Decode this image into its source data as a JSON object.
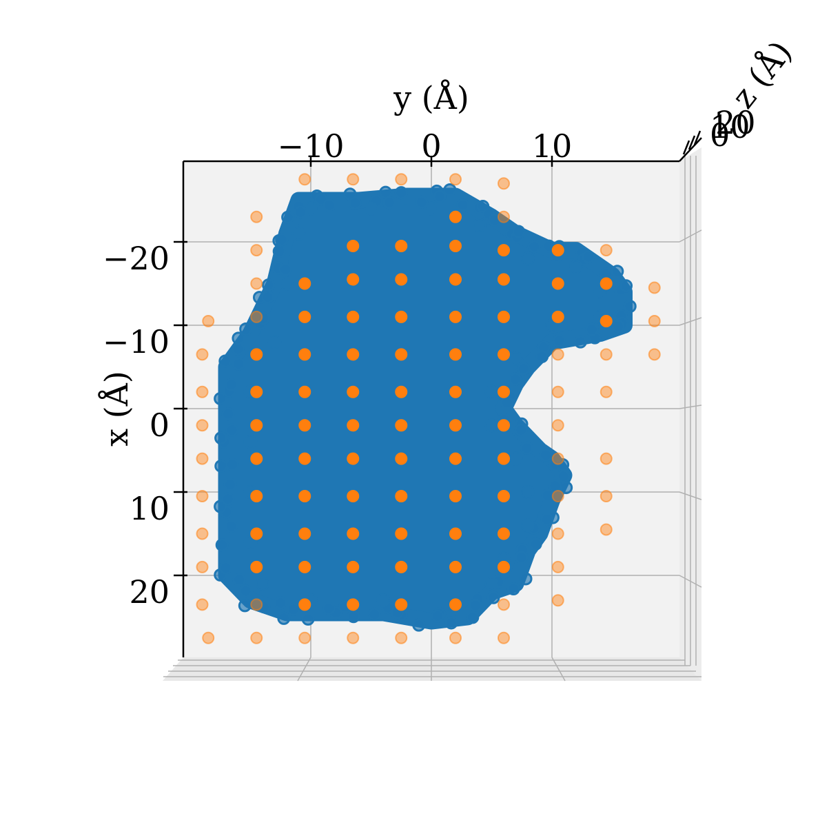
{
  "chart_data": {
    "type": "scatter",
    "projection": "3d viewed from top (y horizontal, x vertical, z into page)",
    "xlabel": "y (Å)",
    "ylabel": "x (Å)",
    "zlabel": "z (Å)",
    "x_axis": {
      "label": "y (Å)",
      "range": [
        -21,
        21
      ],
      "ticks": [
        "−10",
        "0",
        "10"
      ],
      "tick_values": [
        -10,
        0,
        10
      ]
    },
    "y_axis": {
      "label": "x (Å)",
      "range": [
        -30,
        30
      ],
      "ticks": [
        "−20",
        "−10",
        "0",
        "10",
        "20"
      ],
      "tick_values": [
        -20,
        -10,
        0,
        10,
        20
      ],
      "inverted": true
    },
    "z_axis": {
      "label": "z (Å)",
      "ticks": [
        "0",
        "10",
        "20"
      ],
      "tick_values": [
        0,
        10,
        20
      ]
    },
    "grid": true,
    "series": [
      {
        "name": "",
        "color": "#1f77b4",
        "description": "dense atom cloud",
        "outline": [
          [
            -11,
            -25
          ],
          [
            -6,
            -25
          ],
          [
            -2,
            -25.5
          ],
          [
            2,
            -25.5
          ],
          [
            5,
            -23
          ],
          [
            7,
            -21
          ],
          [
            10,
            -19
          ],
          [
            12,
            -19
          ],
          [
            15,
            -16
          ],
          [
            16,
            -14
          ],
          [
            16,
            -10
          ],
          [
            14,
            -9
          ],
          [
            10,
            -8
          ],
          [
            8,
            -5
          ],
          [
            7,
            -3
          ],
          [
            6,
            0
          ],
          [
            7,
            2
          ],
          [
            9,
            5
          ],
          [
            10,
            6
          ],
          [
            11,
            8
          ],
          [
            10,
            11
          ],
          [
            9,
            15
          ],
          [
            8,
            17
          ],
          [
            7,
            21
          ],
          [
            5,
            22
          ],
          [
            3,
            25
          ],
          [
            0,
            25.5
          ],
          [
            -4,
            24.5
          ],
          [
            -8,
            24.5
          ],
          [
            -12,
            24.5
          ],
          [
            -15,
            23
          ],
          [
            -17,
            20
          ],
          [
            -17,
            17
          ],
          [
            -17,
            13
          ],
          [
            -17,
            9
          ],
          [
            -17,
            6
          ],
          [
            -17,
            2
          ],
          [
            -17,
            -2
          ],
          [
            -17,
            -5
          ],
          [
            -15,
            -9
          ],
          [
            -13,
            -15
          ],
          [
            -12,
            -21
          ],
          [
            -11,
            -25
          ]
        ],
        "fill_regions": [
          [
            -10,
            -24
          ],
          [
            -5,
            -24
          ],
          [
            0,
            -24
          ],
          [
            4,
            -22
          ],
          [
            8,
            -18
          ],
          [
            12,
            -17
          ],
          [
            14,
            -14
          ],
          [
            14,
            -11
          ],
          [
            10,
            -10
          ],
          [
            7,
            -6
          ],
          [
            5,
            -2
          ],
          [
            5,
            2
          ],
          [
            7,
            6
          ],
          [
            8,
            10
          ],
          [
            8,
            14
          ],
          [
            6,
            18
          ],
          [
            5,
            21
          ],
          [
            2,
            24
          ],
          [
            -4,
            23
          ],
          [
            -10,
            23
          ],
          [
            -14,
            21
          ],
          [
            -15,
            16
          ],
          [
            -15,
            10
          ],
          [
            -15,
            4
          ],
          [
            -15,
            -2
          ],
          [
            -13,
            -8
          ],
          [
            -12,
            -15
          ],
          [
            -11,
            -21
          ]
        ]
      },
      {
        "name": "",
        "color": "#ff7f0e",
        "description": "grid points (opaque inside, faded outside)",
        "points": [
          [
            -10.5,
            -27.5
          ],
          [
            -6.5,
            -27.5
          ],
          [
            -2.5,
            -27.5
          ],
          [
            2,
            -27.5
          ],
          [
            6,
            -27
          ],
          [
            -14.5,
            -23
          ],
          [
            2,
            -23
          ],
          [
            6,
            -23
          ],
          [
            -14.5,
            -19
          ],
          [
            -6.5,
            -19.5
          ],
          [
            -2.5,
            -19.5
          ],
          [
            2,
            -19.5
          ],
          [
            6,
            -19
          ],
          [
            10.5,
            -19
          ],
          [
            14.5,
            -19
          ],
          [
            -14.5,
            -15
          ],
          [
            -10.5,
            -15
          ],
          [
            -6.5,
            -15.5
          ],
          [
            -2.5,
            -15.5
          ],
          [
            2,
            -15.5
          ],
          [
            6,
            -15.5
          ],
          [
            10.5,
            -15
          ],
          [
            14.5,
            -15
          ],
          [
            18.5,
            -14.5
          ],
          [
            -18.5,
            -10.5
          ],
          [
            -14.5,
            -11
          ],
          [
            -10.5,
            -11
          ],
          [
            -6.5,
            -11
          ],
          [
            -2.5,
            -11
          ],
          [
            2,
            -11
          ],
          [
            6,
            -11
          ],
          [
            10.5,
            -11
          ],
          [
            14.5,
            -10.5
          ],
          [
            18.5,
            -10.5
          ],
          [
            -19,
            -6.5
          ],
          [
            -14.5,
            -6.5
          ],
          [
            -10.5,
            -6.5
          ],
          [
            -6.5,
            -6.5
          ],
          [
            -2.5,
            -6.5
          ],
          [
            2,
            -6.5
          ],
          [
            6,
            -6.5
          ],
          [
            10.5,
            -6.5
          ],
          [
            14.5,
            -6.5
          ],
          [
            18.5,
            -6.5
          ],
          [
            -19,
            -2
          ],
          [
            -14.5,
            -2
          ],
          [
            -10.5,
            -2
          ],
          [
            -6.5,
            -2
          ],
          [
            -2.5,
            -2
          ],
          [
            2,
            -2
          ],
          [
            6,
            -2
          ],
          [
            10.5,
            -2
          ],
          [
            14.5,
            -2
          ],
          [
            -19,
            2
          ],
          [
            -14.5,
            2
          ],
          [
            -10.5,
            2
          ],
          [
            -6.5,
            2
          ],
          [
            -2.5,
            2
          ],
          [
            2,
            2
          ],
          [
            6,
            2
          ],
          [
            10.5,
            2
          ],
          [
            -19,
            6
          ],
          [
            -14.5,
            6
          ],
          [
            -10.5,
            6
          ],
          [
            -6.5,
            6
          ],
          [
            -2.5,
            6
          ],
          [
            2,
            6
          ],
          [
            6,
            6
          ],
          [
            10.5,
            6
          ],
          [
            14.5,
            6
          ],
          [
            -19,
            10.5
          ],
          [
            -14.5,
            10.5
          ],
          [
            -10.5,
            10.5
          ],
          [
            -6.5,
            10.5
          ],
          [
            -2.5,
            10.5
          ],
          [
            2,
            10.5
          ],
          [
            6,
            10.5
          ],
          [
            10.5,
            10.5
          ],
          [
            14.5,
            10.5
          ],
          [
            -19,
            15
          ],
          [
            -14.5,
            15
          ],
          [
            -10.5,
            15
          ],
          [
            -6.5,
            15
          ],
          [
            -2.5,
            15
          ],
          [
            2,
            15
          ],
          [
            6,
            15
          ],
          [
            10.5,
            15
          ],
          [
            14.5,
            14.5
          ],
          [
            -19,
            19
          ],
          [
            -14.5,
            19
          ],
          [
            -10.5,
            19
          ],
          [
            -6.5,
            19
          ],
          [
            -2.5,
            19
          ],
          [
            2,
            19
          ],
          [
            6,
            19
          ],
          [
            10.5,
            19
          ],
          [
            -19,
            23.5
          ],
          [
            -14.5,
            23.5
          ],
          [
            -10.5,
            23.5
          ],
          [
            -6.5,
            23.5
          ],
          [
            -2.5,
            23.5
          ],
          [
            2,
            23.5
          ],
          [
            6,
            23.5
          ],
          [
            10.5,
            23
          ],
          [
            -18.5,
            27.5
          ],
          [
            -14.5,
            27.5
          ],
          [
            -10.5,
            27.5
          ],
          [
            -6.5,
            27.5
          ],
          [
            -2.5,
            27.5
          ],
          [
            2,
            27.5
          ],
          [
            6,
            27.5
          ]
        ]
      }
    ]
  }
}
